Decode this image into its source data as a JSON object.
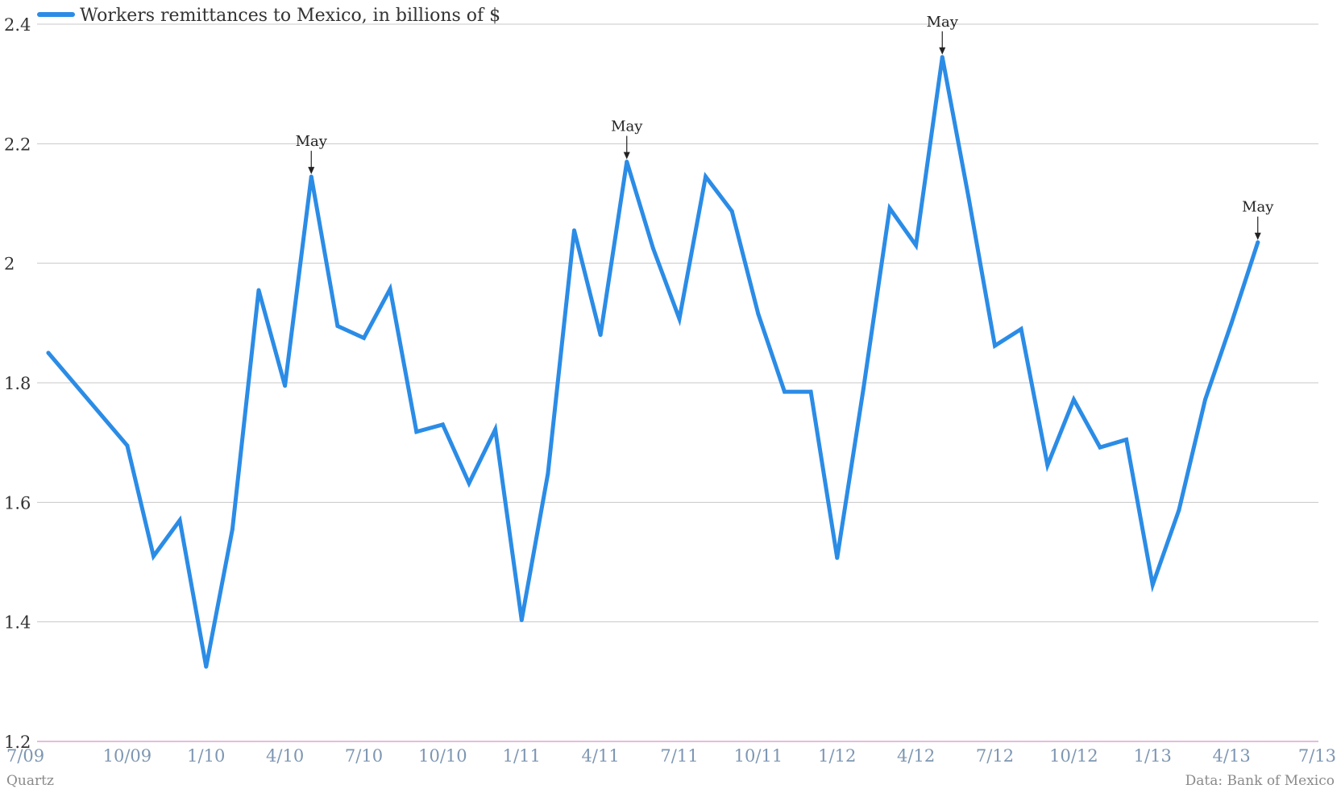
{
  "chart_data": {
    "type": "line",
    "title": "",
    "xlabel": "",
    "ylabel": "",
    "ylim": [
      1.2,
      2.4
    ],
    "yticks": [
      "1.2",
      "1.4",
      "1.6",
      "1.8",
      "2",
      "2.2",
      "2.4"
    ],
    "xticks": [
      "7/09",
      "10/09",
      "1/10",
      "4/10",
      "7/10",
      "10/10",
      "1/11",
      "4/11",
      "7/11",
      "10/11",
      "1/12",
      "4/12",
      "7/12",
      "10/12",
      "1/13",
      "4/13",
      "7/13"
    ],
    "grid": "horizontal",
    "legend": "top-left",
    "colors": {
      "line": "#2b8ce6",
      "grid": "#c8c8c8",
      "baseline": "#d9a8cf"
    },
    "series": [
      {
        "name": "Workers remittances to Mexico, in billions of $",
        "x": [
          "7/09",
          "10/09",
          "11/09",
          "12/09",
          "1/10",
          "2/10",
          "3/10",
          "4/10",
          "5/10",
          "6/10",
          "7/10",
          "8/10",
          "9/10",
          "10/10",
          "11/10",
          "12/10",
          "1/11",
          "2/11",
          "3/11",
          "4/11",
          "5/11",
          "6/11",
          "7/11",
          "8/11",
          "9/11",
          "10/11",
          "11/11",
          "12/11",
          "1/12",
          "2/12",
          "3/12",
          "4/12",
          "5/12",
          "6/12",
          "7/12",
          "8/12",
          "9/12",
          "10/12",
          "11/12",
          "12/12",
          "1/13",
          "2/13",
          "3/13",
          "4/13",
          "5/13"
        ],
        "values": [
          1.85,
          1.695,
          1.51,
          1.57,
          1.325,
          1.555,
          1.955,
          1.795,
          2.145,
          1.895,
          1.875,
          1.957,
          1.718,
          1.73,
          1.632,
          1.722,
          1.403,
          1.648,
          2.055,
          1.88,
          2.17,
          2.025,
          1.907,
          2.145,
          2.087,
          1.915,
          1.785,
          1.785,
          1.507,
          1.79,
          2.092,
          2.03,
          2.345,
          2.11,
          1.862,
          1.89,
          1.662,
          1.772,
          1.692,
          1.705,
          1.462,
          1.587,
          1.772,
          1.9,
          2.035
        ]
      }
    ],
    "annotations": [
      {
        "label": "May",
        "x": "5/10",
        "y": 2.145
      },
      {
        "label": "May",
        "x": "5/11",
        "y": 2.17
      },
      {
        "label": "May",
        "x": "5/12",
        "y": 2.345
      },
      {
        "label": "May",
        "x": "5/13",
        "y": 2.035
      }
    ]
  },
  "footer": {
    "source_left": "Quartz",
    "source_right": "Data: Bank of Mexico"
  }
}
